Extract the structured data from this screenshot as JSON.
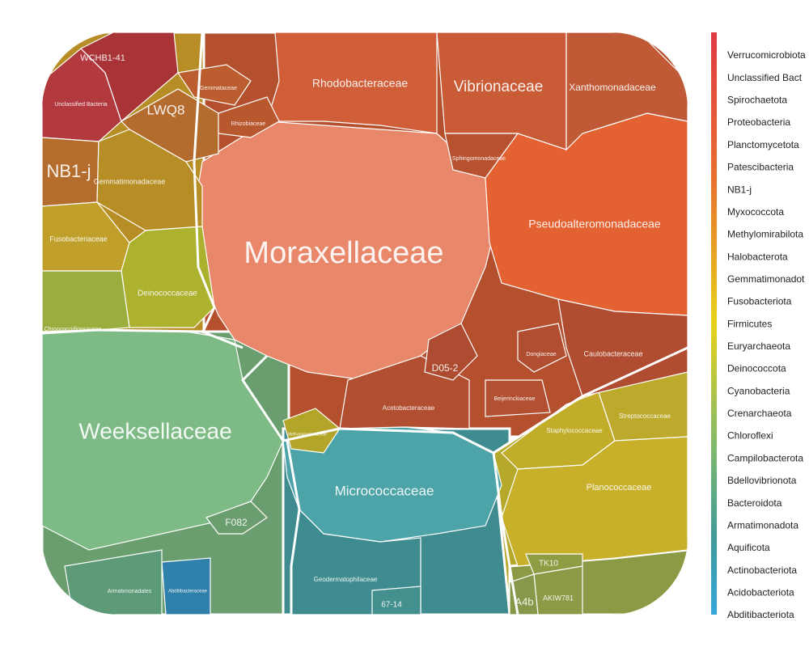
{
  "chart_data": {
    "type": "voronoi-treemap",
    "cells": [
      {
        "label": "Moraxellaceae",
        "color": "#e8876a"
      },
      {
        "label": "Weeksellaceae",
        "color": "#7dba85"
      },
      {
        "label": "Micrococcaceae",
        "color": "#4da4a8"
      },
      {
        "label": "Pseudoalteromonadaceae",
        "color": "#e46232"
      },
      {
        "label": "Rhodobacteraceae",
        "color": "#d05e38"
      },
      {
        "label": "Vibrionaceae",
        "color": "#c95b36"
      },
      {
        "label": "Xanthomonadaceae",
        "color": "#c05a36"
      },
      {
        "label": "Unclassified Bacteria",
        "color": "#b23a3f"
      },
      {
        "label": "WCHB1-41",
        "color": "#a83438"
      },
      {
        "label": "LWQ8",
        "color": "#b46b2e"
      },
      {
        "label": "NB1-j",
        "color": "#b56d2d"
      },
      {
        "label": "Gemmatimonadaceae",
        "color": "#b78d26"
      },
      {
        "label": "Fusobacteriaceae",
        "color": "#c0a02a"
      },
      {
        "label": "Deinococcaceae",
        "color": "#acb12e"
      },
      {
        "label": "Chroococcidiopsaceae",
        "color": "#9aad3f"
      },
      {
        "label": "Staphylococcaceae",
        "color": "#c2ad2a"
      },
      {
        "label": "Streptococcaceae",
        "color": "#bda92b"
      },
      {
        "label": "Planococcaceae",
        "color": "#c8b02a"
      },
      {
        "label": "Caulobacteraceae",
        "color": "#b04d31"
      },
      {
        "label": "Acetobacteraceae",
        "color": "#b24f31"
      },
      {
        "label": "D05-2",
        "color": "#ad4c30"
      },
      {
        "label": "Geodermatophilaceae",
        "color": "#3f8c90"
      },
      {
        "label": "Abditibacteraceae",
        "color": "#2f80ab"
      },
      {
        "label": "Armatimonadales",
        "color": "#5c9a78"
      },
      {
        "label": "F082",
        "color": "#6a9e6f"
      },
      {
        "label": "Methanobacteriaceae",
        "color": "#b3a52a"
      },
      {
        "label": "Sphingomonadaceae",
        "color": "#b8512f"
      },
      {
        "label": "AKIW781",
        "color": "#8a9a45"
      },
      {
        "label": "A4b",
        "color": "#86984a"
      },
      {
        "label": "TK10",
        "color": "#8f9c44"
      },
      {
        "label": "67-14",
        "color": "#44908f"
      },
      {
        "label": "Dongiaceae",
        "color": "#b14e31"
      },
      {
        "label": "Beijerinckiaceae",
        "color": "#b35031"
      },
      {
        "label": "Rhizobiaceae",
        "color": "#b8582f"
      },
      {
        "label": "Gemmataceae",
        "color": "#bb5d2e"
      }
    ],
    "legend": [
      "Verrucomicrobiota",
      "Unclassified Bact",
      "Spirochaetota",
      "Proteobacteria",
      "Planctomycetota",
      "Patescibacteria",
      "NB1-j",
      "Myxococcota",
      "Methylomirabilota",
      "Halobacterota",
      "Gemmatimonadot",
      "Fusobacteriota",
      "Firmicutes",
      "Euryarchaeota",
      "Deinococcota",
      "Cyanobacteria",
      "Crenarchaeota",
      "Chloroflexi",
      "Campilobacterota",
      "Bdellovibrionota",
      "Bacteroidota",
      "Armatimonadota",
      "Aquificota",
      "Actinobacteriota",
      "Acidobacteriota",
      "Abditibacteriota"
    ]
  }
}
